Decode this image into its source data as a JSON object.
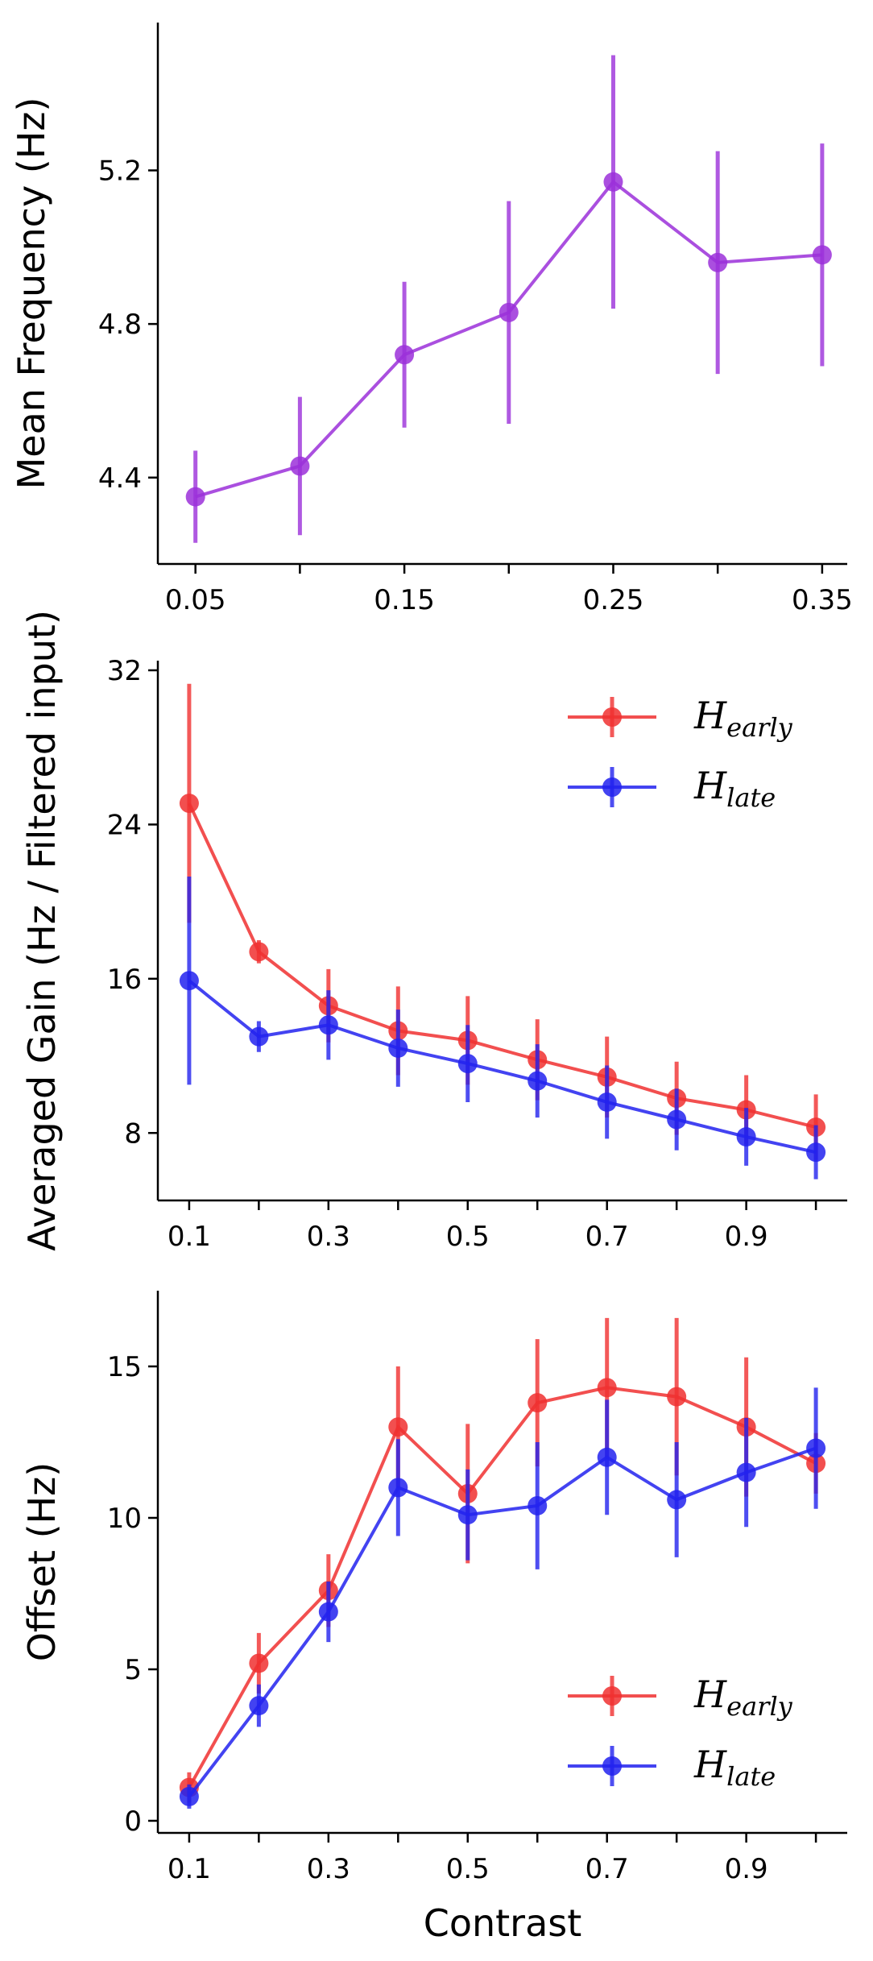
{
  "chart_data": [
    {
      "type": "line",
      "title": "",
      "xlabel": "",
      "ylabel": "Mean Frequency (Hz)",
      "x": [
        0.05,
        0.1,
        0.15,
        0.2,
        0.25,
        0.3,
        0.35
      ],
      "xticks": [
        "0.05",
        "0.15",
        "0.25",
        "0.35"
      ],
      "yticks": [
        "4.4",
        "4.8",
        "5.2"
      ],
      "xlim": [
        0.032,
        0.362
      ],
      "ylim": [
        4.175,
        5.585
      ],
      "grid": false,
      "legend": null,
      "series": [
        {
          "color": "#9b30d9",
          "values": [
            4.35,
            4.43,
            4.72,
            4.83,
            5.17,
            4.96,
            4.98
          ],
          "err": [
            0.12,
            0.18,
            0.19,
            0.29,
            0.33,
            0.29,
            0.29
          ]
        }
      ]
    },
    {
      "type": "line",
      "title": "",
      "xlabel": "",
      "ylabel": "Averaged Gain (Hz / Filtered input)",
      "x": [
        0.1,
        0.2,
        0.3,
        0.4,
        0.5,
        0.6,
        0.7,
        0.8,
        0.9,
        1.0
      ],
      "xticks": [
        "0.1",
        "0.3",
        "0.5",
        "0.7",
        "0.9"
      ],
      "yticks": [
        "8",
        "16",
        "24",
        "32"
      ],
      "xlim": [
        0.055,
        1.045
      ],
      "ylim": [
        4.5,
        32.5
      ],
      "grid": false,
      "legend": "top-right",
      "series": [
        {
          "name": "early",
          "color": "#f03030",
          "values": [
            25.1,
            17.4,
            14.6,
            13.3,
            12.8,
            11.8,
            10.9,
            9.8,
            9.2,
            8.3
          ],
          "err": [
            6.2,
            0.6,
            1.9,
            2.3,
            2.3,
            2.1,
            2.1,
            1.9,
            1.8,
            1.7
          ]
        },
        {
          "name": "late",
          "color": "#2222ee",
          "values": [
            15.9,
            13.0,
            13.6,
            12.4,
            11.6,
            10.7,
            9.6,
            8.7,
            7.8,
            7.0
          ],
          "err": [
            5.4,
            0.8,
            1.8,
            2.0,
            2.0,
            1.9,
            1.9,
            1.6,
            1.5,
            1.4
          ]
        }
      ]
    },
    {
      "type": "line",
      "title": "",
      "xlabel": "Contrast",
      "ylabel": "Offset (Hz)",
      "x": [
        0.1,
        0.2,
        0.3,
        0.4,
        0.5,
        0.6,
        0.7,
        0.8,
        0.9,
        1.0
      ],
      "xticks": [
        "0.1",
        "0.3",
        "0.5",
        "0.7",
        "0.9"
      ],
      "yticks": [
        "0",
        "5",
        "10",
        "15"
      ],
      "xlim": [
        0.055,
        1.045
      ],
      "ylim": [
        -0.4,
        17.5
      ],
      "grid": false,
      "legend": "bottom-right",
      "series": [
        {
          "name": "early",
          "color": "#f03030",
          "values": [
            1.1,
            5.2,
            7.6,
            13.0,
            10.8,
            13.8,
            14.3,
            14.0,
            13.0,
            11.8
          ],
          "err": [
            0.5,
            1.0,
            1.2,
            2.0,
            2.3,
            2.1,
            2.3,
            2.6,
            2.3,
            1.0
          ]
        },
        {
          "name": "late",
          "color": "#2222ee",
          "values": [
            0.8,
            3.8,
            6.9,
            11.0,
            10.1,
            10.4,
            12.0,
            10.6,
            11.5,
            12.3
          ],
          "err": [
            0.4,
            0.7,
            1.0,
            1.6,
            1.5,
            2.1,
            1.9,
            1.9,
            1.8,
            2.0
          ]
        }
      ]
    }
  ]
}
